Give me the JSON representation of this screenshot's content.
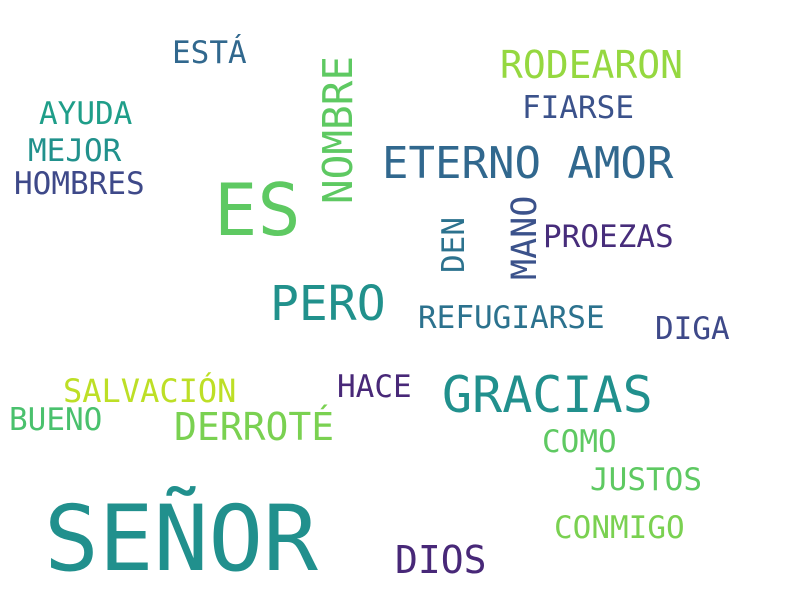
{
  "words": {
    "senor": {
      "text": "SEÑOR",
      "color": "#21908d"
    },
    "es": {
      "text": "ES",
      "color": "#5ec962"
    },
    "gracias": {
      "text": "GRACIAS",
      "color": "#21908d"
    },
    "eterno_amor": {
      "text": "ETERNO AMOR",
      "color": "#31688e"
    },
    "pero": {
      "text": "PERO",
      "color": "#21918c"
    },
    "nombre": {
      "text": "NOMBRE",
      "color": "#5ec962"
    },
    "rodearon": {
      "text": "RODEARON",
      "color": "#95d840"
    },
    "dios": {
      "text": "DIOS",
      "color": "#482878"
    },
    "derrote": {
      "text": "DERROTÉ",
      "color": "#7ad151"
    },
    "mano": {
      "text": "MANO",
      "color": "#3b528b"
    },
    "salvacion": {
      "text": "SALVACIÓN",
      "color": "#bddf26"
    },
    "proezas": {
      "text": "PROEZAS",
      "color": "#472d7b"
    },
    "refugiarse": {
      "text": "REFUGIARSE",
      "color": "#2c728e"
    },
    "hombres": {
      "text": "HOMBRES",
      "color": "#3e4989"
    },
    "conmigo": {
      "text": "CONMIGO",
      "color": "#7ad151"
    },
    "justos": {
      "text": "JUSTOS",
      "color": "#5ec962"
    },
    "hace": {
      "text": "HACE",
      "color": "#482878"
    },
    "esta": {
      "text": "ESTÁ",
      "color": "#31688e"
    },
    "ayuda": {
      "text": "AYUDA",
      "color": "#1f9e89"
    },
    "mejor": {
      "text": "MEJOR",
      "color": "#21918c"
    },
    "fiarse": {
      "text": "FIARSE",
      "color": "#3b528b"
    },
    "diga": {
      "text": "DIGA",
      "color": "#3e4989"
    },
    "bueno": {
      "text": "BUENO",
      "color": "#4ac16d"
    },
    "como": {
      "text": "COMO",
      "color": "#5ec962"
    },
    "den": {
      "text": "DEN",
      "color": "#2c728e"
    }
  }
}
